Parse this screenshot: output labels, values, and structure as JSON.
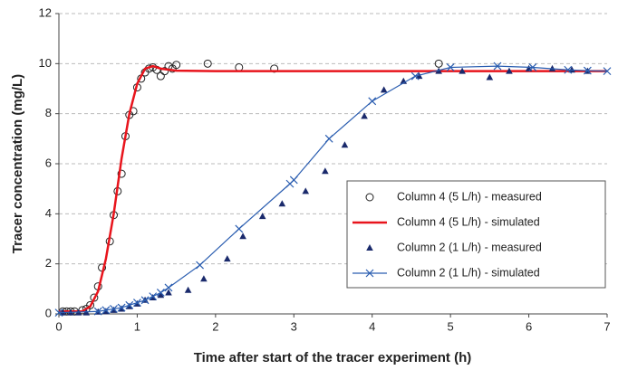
{
  "chart_data": {
    "type": "scatter",
    "xlabel": "Time after start of the tracer experiment (h)",
    "ylabel": "Tracer concentration (mg/L)",
    "xlim": [
      0,
      7
    ],
    "xticks": [
      0,
      1,
      2,
      3,
      4,
      5,
      6,
      7
    ],
    "ylim": [
      0,
      12
    ],
    "yticks": [
      0,
      2,
      4,
      6,
      8,
      10,
      12
    ],
    "grid": true,
    "legend": "lower right",
    "series": [
      {
        "name": "Column 4 (5 L/h) - measured",
        "color": "#222222",
        "marker": "circle",
        "line": false,
        "x": [
          0.05,
          0.1,
          0.15,
          0.2,
          0.3,
          0.35,
          0.4,
          0.45,
          0.5,
          0.55,
          0.65,
          0.7,
          0.75,
          0.8,
          0.85,
          0.9,
          0.95,
          1.0,
          1.05,
          1.1,
          1.15,
          1.2,
          1.25,
          1.3,
          1.35,
          1.4,
          1.45,
          1.5,
          1.9,
          2.3,
          2.75,
          4.85
        ],
        "values": [
          0.1,
          0.1,
          0.1,
          0.1,
          0.15,
          0.2,
          0.35,
          0.65,
          1.1,
          1.85,
          2.9,
          3.95,
          4.9,
          5.6,
          7.1,
          7.95,
          8.1,
          9.05,
          9.4,
          9.65,
          9.8,
          9.85,
          9.75,
          9.5,
          9.7,
          9.9,
          9.8,
          9.95,
          10.0,
          9.85,
          9.8,
          10.0
        ]
      },
      {
        "name": "Column 4 (5 L/h)  - simulated",
        "color": "#e8141c",
        "marker": "none",
        "line": true,
        "x": [
          0,
          0.3,
          0.4,
          0.5,
          0.6,
          0.7,
          0.8,
          0.9,
          1.0,
          1.1,
          1.2,
          1.3,
          1.5,
          2,
          7
        ],
        "values": [
          0.1,
          0.1,
          0.3,
          0.9,
          2.2,
          4.0,
          6.2,
          8.0,
          9.2,
          9.8,
          9.9,
          9.8,
          9.72,
          9.7,
          9.7
        ]
      },
      {
        "name": "Column 2 (1 L/h) - measured",
        "color": "#1a2a6c",
        "marker": "triangle",
        "line": false,
        "x": [
          0.05,
          0.15,
          0.25,
          0.35,
          0.5,
          0.6,
          0.7,
          0.8,
          0.9,
          1.0,
          1.1,
          1.2,
          1.3,
          1.4,
          1.65,
          1.85,
          2.15,
          2.35,
          2.6,
          2.85,
          3.15,
          3.4,
          3.65,
          3.9,
          4.15,
          4.4,
          4.6,
          4.85,
          5.15,
          5.5,
          5.75,
          6.0,
          6.3,
          6.55,
          6.75
        ],
        "values": [
          0.05,
          0.05,
          0.05,
          0.05,
          0.08,
          0.1,
          0.15,
          0.2,
          0.3,
          0.4,
          0.55,
          0.65,
          0.75,
          0.85,
          0.95,
          1.4,
          2.2,
          3.1,
          3.9,
          4.4,
          4.9,
          5.7,
          6.75,
          7.9,
          8.95,
          9.3,
          9.5,
          9.7,
          9.7,
          9.45,
          9.7,
          9.8,
          9.8,
          9.75,
          9.7
        ]
      },
      {
        "name": "Column 2 (1 L/h)  - simulated",
        "color": "#2a5db0",
        "marker": "x",
        "line": true,
        "x": [
          0,
          0.5,
          0.6,
          0.7,
          0.8,
          0.9,
          1.0,
          1.1,
          1.2,
          1.3,
          1.4,
          1.8,
          2.3,
          2.95,
          3.0,
          3.45,
          4.0,
          4.55,
          5.0,
          5.6,
          6.05,
          6.5,
          6.75,
          7
        ],
        "values": [
          0.05,
          0.1,
          0.15,
          0.2,
          0.25,
          0.35,
          0.45,
          0.55,
          0.7,
          0.85,
          1.05,
          1.95,
          3.4,
          5.2,
          5.35,
          7.0,
          8.5,
          9.5,
          9.85,
          9.9,
          9.85,
          9.75,
          9.72,
          9.7
        ]
      }
    ]
  }
}
